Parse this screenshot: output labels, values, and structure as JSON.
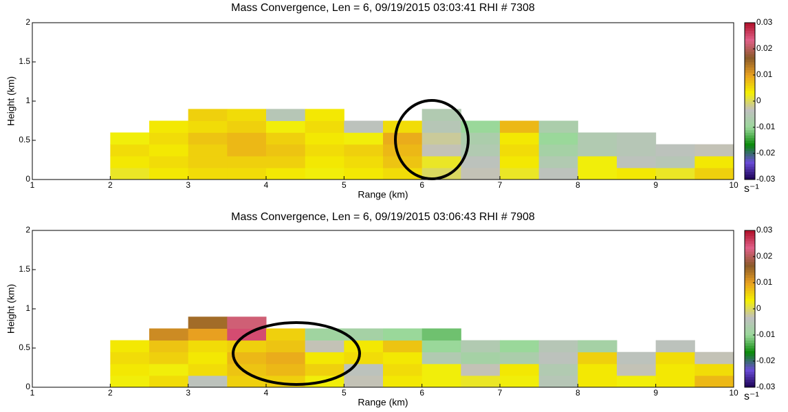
{
  "chart_data": [
    {
      "type": "heatmap",
      "title": "Mass Convergence, Len = 6, 09/19/2015 03:03:41 RHI # 7308",
      "xlabel": "Range (km)",
      "ylabel": "Height (km)",
      "xlim": [
        1,
        10
      ],
      "ylim": [
        0,
        2
      ],
      "xticks": [
        1,
        2,
        3,
        4,
        5,
        6,
        7,
        8,
        9,
        10
      ],
      "yticks": [
        0,
        0.5,
        1,
        1.5,
        2
      ],
      "x": [
        2.25,
        2.75,
        3.25,
        3.75,
        4.25,
        4.75,
        5.25,
        5.75,
        6.25,
        6.75,
        7.25,
        7.75,
        8.25,
        8.75,
        9.25,
        9.75
      ],
      "y": [
        0.075,
        0.225,
        0.375,
        0.525,
        0.675,
        0.825
      ],
      "values": [
        [
          0.002,
          0.004,
          0.005,
          0.005,
          0.004,
          0.003,
          0.004,
          0.005,
          0,
          -0.003,
          0.002,
          -0.004,
          0.003,
          0.004,
          0.002,
          0.006
        ],
        [
          0.004,
          0.005,
          0.006,
          0.006,
          0.006,
          0.004,
          0.005,
          0.007,
          0.002,
          -0.004,
          0.004,
          -0.006,
          0.003,
          -0.004,
          -0.005,
          0.004
        ],
        [
          0.005,
          0.004,
          0.006,
          0.008,
          0.007,
          0.005,
          0.006,
          0.008,
          -0.003,
          -0.006,
          0.005,
          -0.008,
          -0.006,
          -0.005,
          -0.004,
          -0.003
        ],
        [
          0.003,
          0.005,
          0.007,
          0.008,
          0.006,
          0.004,
          0.003,
          0.009,
          -0.002,
          -0.007,
          0.004,
          -0.01,
          -0.006,
          -0.005,
          null,
          null
        ],
        [
          null,
          0.004,
          0.005,
          0.006,
          0.003,
          0.005,
          -0.004,
          0.005,
          -0.005,
          -0.01,
          0.008,
          -0.007,
          null,
          null,
          null,
          null
        ],
        [
          null,
          null,
          0.006,
          0.005,
          -0.005,
          0.004,
          null,
          null,
          -0.006,
          null,
          null,
          null,
          null,
          null,
          null,
          null
        ]
      ],
      "colorbar": {
        "lim": [
          -0.03,
          0.03
        ],
        "ticks": [
          0.03,
          0.02,
          0.01,
          0,
          -0.01,
          -0.02,
          -0.03
        ],
        "label": "s⁻¹",
        "colormap": [
          "#1a0050",
          "#6a4cd8",
          "#0a8a0a",
          "#9ad89a",
          "#c0c0c0",
          "#f4f000",
          "#e8a020",
          "#8a5a2a",
          "#e06088",
          "#b0102a"
        ]
      }
    },
    {
      "type": "heatmap",
      "title": "Mass Convergence, Len = 6, 09/19/2015 03:06:43 RHI # 7908",
      "xlabel": "Range (km)",
      "ylabel": "Height (km)",
      "xlim": [
        1,
        10
      ],
      "ylim": [
        0,
        2
      ],
      "xticks": [
        1,
        2,
        3,
        4,
        5,
        6,
        7,
        8,
        9,
        10
      ],
      "yticks": [
        0,
        0.5,
        1,
        1.5,
        2
      ],
      "x": [
        2.25,
        2.75,
        3.25,
        3.75,
        4.25,
        4.75,
        5.25,
        5.75,
        6.25,
        6.75,
        7.25,
        7.75,
        8.25,
        8.75,
        9.25,
        9.75
      ],
      "y": [
        0.075,
        0.225,
        0.375,
        0.525,
        0.675,
        0.825
      ],
      "values": [
        [
          0.003,
          0.005,
          -0.004,
          0.006,
          0.006,
          0.003,
          -0.003,
          0.004,
          0.003,
          0.002,
          0.003,
          -0.005,
          0.004,
          0.003,
          0.004,
          0.008
        ],
        [
          0.004,
          0.003,
          0.005,
          0.007,
          0.008,
          0.006,
          -0.004,
          0.005,
          0.003,
          -0.003,
          0.004,
          -0.006,
          0.004,
          -0.003,
          0.004,
          0.005
        ],
        [
          0.005,
          0.006,
          0.004,
          0.008,
          0.009,
          0.004,
          0.005,
          0.004,
          -0.006,
          -0.008,
          -0.007,
          -0.004,
          0.006,
          -0.004,
          0.005,
          -0.003
        ],
        [
          0.004,
          0.007,
          0.005,
          0.006,
          0.007,
          -0.003,
          0.004,
          0.007,
          -0.01,
          -0.006,
          -0.01,
          -0.005,
          -0.008,
          null,
          -0.004,
          null
        ],
        [
          null,
          0.012,
          0.01,
          0.025,
          0.006,
          -0.009,
          -0.008,
          -0.01,
          -0.012,
          null,
          null,
          null,
          null,
          null,
          null,
          null
        ],
        [
          null,
          null,
          0.015,
          0.022,
          null,
          null,
          null,
          null,
          null,
          null,
          null,
          null,
          null,
          null,
          null,
          null
        ]
      ],
      "colorbar": {
        "lim": [
          -0.03,
          0.03
        ],
        "ticks": [
          0.03,
          0.02,
          0.01,
          0,
          -0.01,
          -0.02,
          -0.03
        ],
        "label": "s⁻¹",
        "colormap": [
          "#1a0050",
          "#6a4cd8",
          "#0a8a0a",
          "#9ad89a",
          "#c0c0c0",
          "#f4f000",
          "#e8a020",
          "#8a5a2a",
          "#e06088",
          "#b0102a"
        ]
      }
    }
  ]
}
